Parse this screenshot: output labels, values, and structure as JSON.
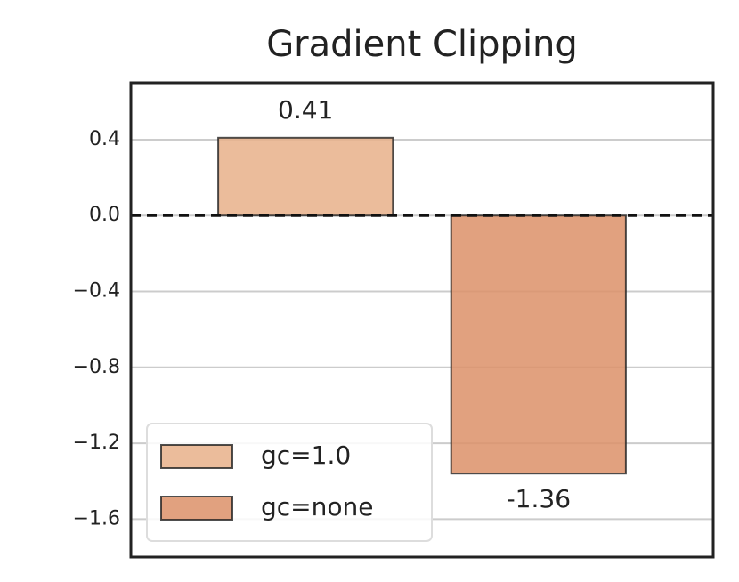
{
  "chart_data": {
    "type": "bar",
    "title": "Gradient Clipping",
    "series": [
      {
        "name": "gc=1.0",
        "color": "#e8b08a",
        "values": [
          0.41
        ]
      },
      {
        "name": "gc=none",
        "color": "#dc9068",
        "values": [
          -1.36
        ]
      }
    ],
    "ylim": [
      -1.8,
      0.7
    ],
    "yticks": [
      0.4,
      {
        "value": 0,
        "label": "0.0"
      },
      {
        "value": -0.4,
        "label": "−0.4"
      },
      {
        "value": -0.8,
        "label": "−0.8"
      },
      {
        "value": -1.2,
        "label": "−1.2"
      },
      {
        "value": -1.6,
        "label": "−1.6"
      }
    ],
    "reference_line": 0,
    "grid": true,
    "legend": "lower left"
  }
}
